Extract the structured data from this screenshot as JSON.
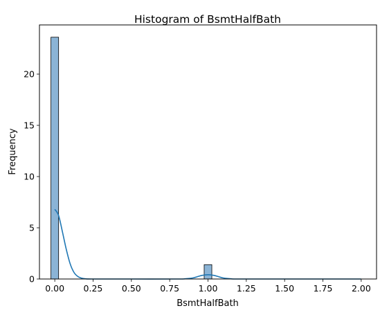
{
  "chart_data": {
    "type": "bar",
    "title": "Histogram of BsmtHalfBath",
    "xlabel": "BsmtHalfBath",
    "ylabel": "Frequency",
    "xlim": [
      -0.1,
      2.1
    ],
    "ylim": [
      0,
      24.8
    ],
    "xticks": [
      "0.00",
      "0.25",
      "0.50",
      "0.75",
      "1.00",
      "1.25",
      "1.50",
      "1.75",
      "2.00"
    ],
    "yticks": [
      "0",
      "5",
      "10",
      "15",
      "20"
    ],
    "bin_width": 0.05,
    "bins": [
      {
        "x0": -0.025,
        "x1": 0.025,
        "value": 23.6
      },
      {
        "x0": 0.975,
        "x1": 1.025,
        "value": 1.4
      }
    ],
    "kde": {
      "x": [
        0.0,
        0.025,
        0.05,
        0.075,
        0.1,
        0.125,
        0.15,
        0.175,
        0.2,
        0.25,
        0.5,
        0.8,
        0.85,
        0.9,
        0.93,
        0.96,
        1.0,
        1.04,
        1.07,
        1.1,
        1.15,
        1.2,
        1.5,
        2.0
      ],
      "y": [
        6.8,
        6.2,
        4.6,
        2.9,
        1.5,
        0.65,
        0.25,
        0.08,
        0.02,
        0.0,
        0.0,
        0.0,
        0.02,
        0.1,
        0.22,
        0.35,
        0.42,
        0.35,
        0.22,
        0.1,
        0.02,
        0.0,
        0.0,
        0.0
      ]
    },
    "colors": {
      "bar_fill": "#8bb4d6",
      "bar_stroke": "#000000",
      "kde_line": "#1f77b4"
    },
    "grid": false,
    "legend": "none"
  }
}
